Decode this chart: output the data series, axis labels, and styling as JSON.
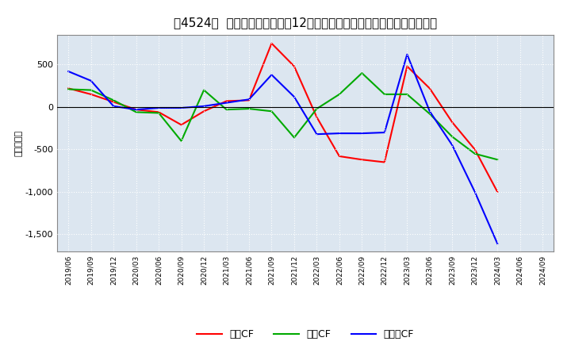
{
  "title": "［4524］  キャッシュフローの12か月移動合計の対前年同期増減額の推移",
  "ylabel": "（百万円）",
  "x_labels": [
    "2019/06",
    "2019/09",
    "2019/12",
    "2020/03",
    "2020/06",
    "2020/09",
    "2020/12",
    "2021/03",
    "2021/06",
    "2021/09",
    "2021/12",
    "2022/03",
    "2022/06",
    "2022/09",
    "2022/12",
    "2023/03",
    "2023/06",
    "2023/09",
    "2023/12",
    "2024/03",
    "2024/06",
    "2024/09"
  ],
  "operating_cf": [
    220,
    150,
    60,
    -30,
    -60,
    -210,
    -50,
    70,
    80,
    750,
    480,
    -120,
    -580,
    -620,
    -650,
    480,
    220,
    -180,
    -500,
    -1000,
    null,
    null
  ],
  "investing_cf": [
    210,
    200,
    80,
    -60,
    -70,
    -400,
    200,
    -30,
    -20,
    -50,
    -360,
    -20,
    150,
    400,
    150,
    150,
    -80,
    -350,
    -550,
    -620,
    null,
    null
  ],
  "free_cf": [
    420,
    310,
    10,
    -30,
    -10,
    -10,
    10,
    50,
    90,
    380,
    120,
    -320,
    -310,
    -310,
    -300,
    620,
    -50,
    -450,
    -1000,
    -1610,
    null,
    null
  ],
  "operating_color": "#ff0000",
  "investing_color": "#00aa00",
  "free_color": "#0000ff",
  "ylim": [
    -1700,
    850
  ],
  "yticks": [
    -1500,
    -1000,
    -500,
    0,
    500
  ],
  "bg_color": "#ffffff",
  "plot_bg_color": "#dce6f0",
  "grid_color": "#ffffff",
  "title_fontsize": 11,
  "legend_labels": [
    "営業CF",
    "投資CF",
    "フリーCF"
  ]
}
